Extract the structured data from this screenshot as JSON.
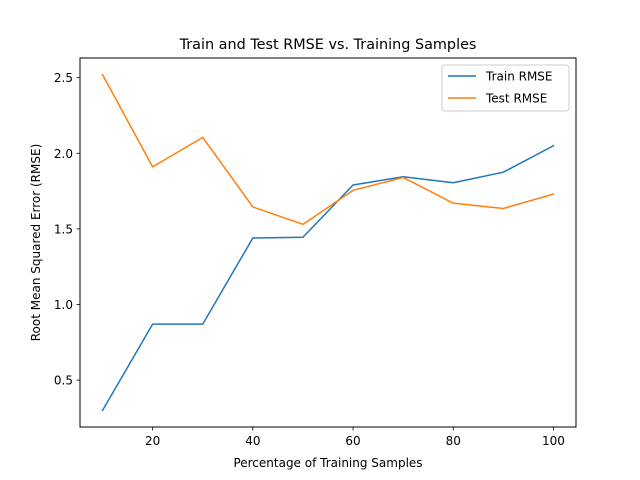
{
  "chart_data": {
    "type": "line",
    "title": "Train and Test RMSE vs. Training Samples",
    "xlabel": "Percentage of Training Samples",
    "ylabel": "Root Mean Squared Error (RMSE)",
    "x": [
      10,
      20,
      30,
      40,
      50,
      60,
      70,
      80,
      90,
      100
    ],
    "xlim": [
      5.5,
      104.5
    ],
    "ylim": [
      0.19,
      2.63
    ],
    "xticks": [
      20,
      40,
      60,
      80,
      100
    ],
    "yticks": [
      0.5,
      1.0,
      1.5,
      2.0,
      2.5
    ],
    "xtick_labels": [
      "20",
      "40",
      "60",
      "80",
      "100"
    ],
    "ytick_labels": [
      "0.5",
      "1.0",
      "1.5",
      "2.0",
      "2.5"
    ],
    "grid": false,
    "legend_position": "top-right",
    "series": [
      {
        "name": "Train RMSE",
        "color": "#1f77b4",
        "values": [
          0.3,
          0.87,
          0.87,
          1.44,
          1.445,
          1.79,
          1.845,
          1.805,
          1.875,
          2.05
        ]
      },
      {
        "name": "Test RMSE",
        "color": "#ff7f0e",
        "values": [
          2.52,
          1.91,
          2.105,
          1.645,
          1.53,
          1.755,
          1.84,
          1.67,
          1.635,
          1.73
        ]
      }
    ]
  }
}
